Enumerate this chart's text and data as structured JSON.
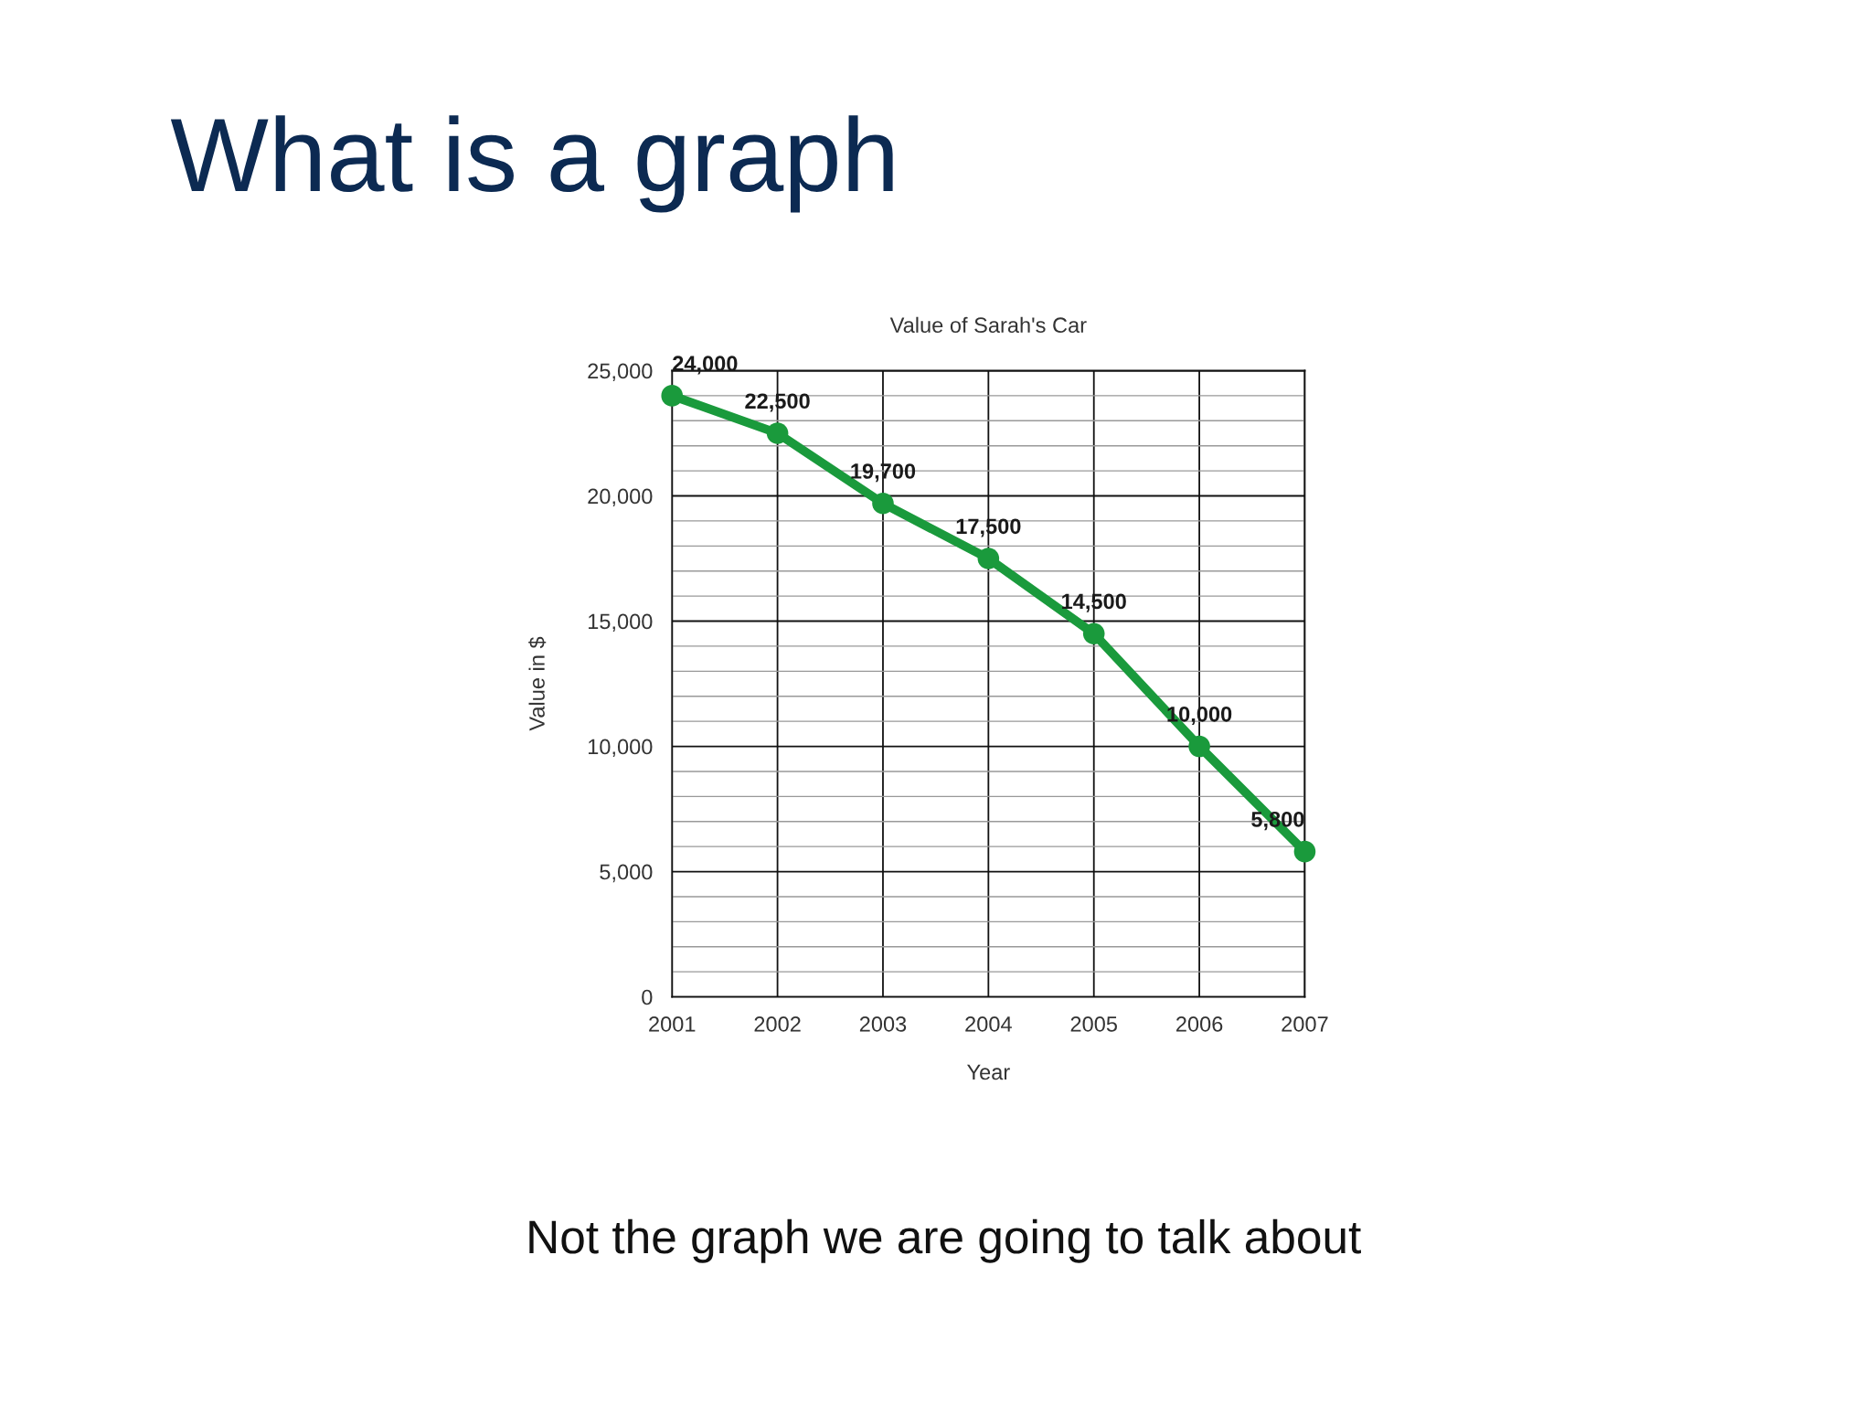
{
  "chart_data": {
    "type": "line",
    "title": "What is a graph",
    "subtitle": "Value of Sarah's Car",
    "xlabel": "Year",
    "ylabel": "Value in $",
    "annotations": [
      "Not the graph we are going to talk about"
    ],
    "x": [
      2001,
      2002,
      2003,
      2004,
      2005,
      2006,
      2007
    ],
    "series": [
      {
        "color": "#1a9a3c",
        "values": [
          24000,
          22500,
          19700,
          17500,
          14500,
          10000,
          5800
        ],
        "value_labels": [
          "24,000",
          "22,500",
          "19,700",
          "17,500",
          "14,500",
          "10,000",
          "5,800"
        ]
      }
    ],
    "xlim": [
      2001,
      2007
    ],
    "xticks": [
      2001,
      2002,
      2003,
      2004,
      2005,
      2006,
      2007
    ],
    "ylim": [
      0,
      25000
    ],
    "yticks": [
      0,
      {
        "value": 1000,
        "label": null
      },
      {
        "value": 2000,
        "label": null
      },
      {
        "value": 3000,
        "label": null
      },
      {
        "value": 4000,
        "label": null
      },
      {
        "value": 5000,
        "label": "5,000"
      },
      {
        "value": 6000,
        "label": null
      },
      {
        "value": 7000,
        "label": null
      },
      {
        "value": 8000,
        "label": null
      },
      {
        "value": 9000,
        "label": null
      },
      {
        "value": 10000,
        "label": "10,000"
      },
      {
        "value": 11000,
        "label": null
      },
      {
        "value": 12000,
        "label": null
      },
      {
        "value": 13000,
        "label": null
      },
      {
        "value": 14000,
        "label": null
      },
      {
        "value": 15000,
        "label": "15,000"
      },
      {
        "value": 16000,
        "label": null
      },
      {
        "value": 17000,
        "label": null
      },
      {
        "value": 18000,
        "label": null
      },
      {
        "value": 19000,
        "label": null
      },
      {
        "value": 20000,
        "label": "20,000"
      },
      {
        "value": 21000,
        "label": null
      },
      {
        "value": 22000,
        "label": null
      },
      {
        "value": 23000,
        "label": null
      },
      {
        "value": 24000,
        "label": null
      },
      {
        "value": 25000,
        "label": "25,000"
      }
    ],
    "grid": true,
    "marker": "circle",
    "line_style": "solid"
  }
}
